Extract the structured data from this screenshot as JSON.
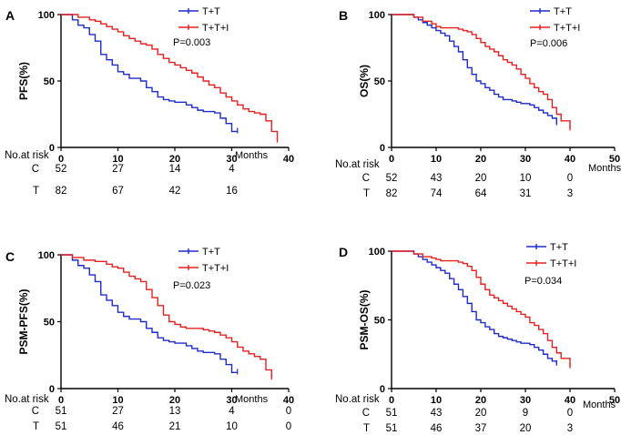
{
  "figure": {
    "common": {
      "risk_header": "No.at risk",
      "months_label": "Months",
      "row_c": "C",
      "row_t": "T"
    }
  },
  "chart_data": [
    {
      "type": "line",
      "panel": "A",
      "ylabel": "PFS(%)",
      "xlabel": "Months",
      "xlim": [
        0,
        40
      ],
      "ylim": [
        0,
        100
      ],
      "x_ticks": [
        "0",
        "10",
        "20",
        "30",
        "40"
      ],
      "y_ticks": [
        "0",
        "50",
        "100"
      ],
      "p_value": "P=0.003",
      "legend_position": "top-right",
      "series": [
        {
          "name": "T+T",
          "color": "#1f2ccc",
          "x": [
            0,
            2,
            3,
            4,
            5,
            6,
            7,
            8,
            9,
            10,
            11,
            12,
            14,
            15,
            16,
            17,
            18,
            19,
            20,
            22,
            23,
            24,
            25,
            27,
            28,
            29,
            30,
            31
          ],
          "y": [
            100,
            96,
            92,
            90,
            85,
            80,
            70,
            66,
            62,
            57,
            55,
            52,
            50,
            45,
            42,
            38,
            36,
            35,
            34,
            32,
            30,
            28,
            27,
            26,
            22,
            18,
            12,
            12
          ]
        },
        {
          "name": "T+T+I",
          "color": "#e8201e",
          "x": [
            0,
            3,
            5,
            6,
            7,
            8,
            9,
            10,
            11,
            12,
            13,
            14,
            15,
            16,
            17,
            18,
            19,
            20,
            21,
            22,
            23,
            24,
            25,
            26,
            27,
            28,
            29,
            30,
            31,
            32,
            33,
            34,
            35,
            36,
            37,
            38
          ],
          "y": [
            100,
            98,
            96,
            95,
            93,
            91,
            89,
            87,
            84,
            82,
            80,
            78,
            77,
            74,
            70,
            67,
            64,
            62,
            60,
            58,
            56,
            53,
            50,
            47,
            45,
            41,
            38,
            35,
            32,
            29,
            27,
            26,
            25,
            20,
            12,
            5
          ]
        }
      ],
      "risk_table": {
        "C": [
          "52",
          "27",
          "14",
          "4",
          ""
        ],
        "T": [
          "82",
          "67",
          "42",
          "16",
          ""
        ]
      }
    },
    {
      "type": "line",
      "panel": "B",
      "ylabel": "OS(%)",
      "xlabel": "Months",
      "xlim": [
        0,
        50
      ],
      "ylim": [
        0,
        100
      ],
      "x_ticks": [
        "0",
        "10",
        "20",
        "30",
        "40",
        "50"
      ],
      "y_ticks": [
        "0",
        "50",
        "100"
      ],
      "p_value": "P=0.006",
      "legend_position": "top-right",
      "series": [
        {
          "name": "T+T",
          "color": "#1f2ccc",
          "x": [
            0,
            5,
            6,
            7,
            8,
            9,
            10,
            11,
            12,
            13,
            14,
            15,
            16,
            17,
            18,
            19,
            20,
            21,
            22,
            23,
            24,
            25,
            26,
            27,
            28,
            29,
            30,
            31,
            32,
            33,
            34,
            35,
            36,
            37
          ],
          "y": [
            100,
            98,
            96,
            94,
            92,
            90,
            88,
            86,
            84,
            80,
            76,
            72,
            66,
            60,
            55,
            50,
            48,
            45,
            43,
            40,
            38,
            36,
            36,
            35,
            34,
            33,
            33,
            32,
            30,
            28,
            26,
            24,
            22,
            18
          ]
        },
        {
          "name": "T+T+I",
          "color": "#e8201e",
          "x": [
            0,
            5,
            7,
            9,
            10,
            11,
            12,
            14,
            15,
            16,
            17,
            18,
            19,
            20,
            21,
            22,
            23,
            24,
            25,
            26,
            27,
            28,
            29,
            30,
            31,
            32,
            33,
            34,
            35,
            36,
            37,
            38,
            40
          ],
          "y": [
            100,
            98,
            95,
            93,
            91,
            90,
            90,
            90,
            89,
            88,
            87,
            85,
            82,
            79,
            76,
            74,
            72,
            69,
            66,
            64,
            62,
            59,
            55,
            52,
            48,
            45,
            42,
            40,
            36,
            30,
            25,
            20,
            14
          ]
        }
      ],
      "risk_table": {
        "C": [
          "52",
          "43",
          "20",
          "10",
          "0",
          ""
        ],
        "T": [
          "82",
          "74",
          "64",
          "31",
          "3",
          ""
        ]
      }
    },
    {
      "type": "line",
      "panel": "C",
      "ylabel": "PSM-PFS(%)",
      "xlabel": "Months",
      "xlim": [
        0,
        40
      ],
      "ylim": [
        0,
        100
      ],
      "x_ticks": [
        "0",
        "10",
        "20",
        "30",
        "40"
      ],
      "y_ticks": [
        "0",
        "50",
        "100"
      ],
      "p_value": "P=0.023",
      "legend_position": "top-right",
      "series": [
        {
          "name": "T+T",
          "color": "#1f2ccc",
          "x": [
            0,
            2,
            3,
            4,
            5,
            6,
            7,
            8,
            9,
            10,
            11,
            12,
            14,
            15,
            16,
            17,
            18,
            19,
            20,
            22,
            23,
            24,
            25,
            27,
            28,
            29,
            30,
            31
          ],
          "y": [
            100,
            96,
            92,
            90,
            85,
            80,
            70,
            66,
            62,
            57,
            54,
            52,
            50,
            45,
            42,
            38,
            36,
            35,
            34,
            32,
            30,
            28,
            27,
            26,
            22,
            18,
            12,
            12
          ]
        },
        {
          "name": "T+T+I",
          "color": "#e8201e",
          "x": [
            0,
            2,
            4,
            6,
            8,
            9,
            10,
            11,
            12,
            13,
            14,
            15,
            16,
            17,
            18,
            19,
            20,
            21,
            22,
            23,
            24,
            25,
            26,
            27,
            28,
            29,
            30,
            31,
            32,
            33,
            34,
            35,
            36,
            37
          ],
          "y": [
            100,
            98,
            96,
            95,
            93,
            91,
            90,
            87,
            84,
            82,
            80,
            74,
            68,
            62,
            55,
            50,
            48,
            46,
            45,
            45,
            45,
            44,
            43,
            42,
            40,
            38,
            35,
            31,
            28,
            26,
            24,
            22,
            14,
            8
          ]
        }
      ],
      "risk_table": {
        "C": [
          "51",
          "27",
          "13",
          "4",
          "0"
        ],
        "T": [
          "51",
          "46",
          "21",
          "10",
          "0"
        ]
      }
    },
    {
      "type": "line",
      "panel": "D",
      "ylabel": "PSM-OS(%)",
      "xlabel": "Months",
      "xlim": [
        0,
        50
      ],
      "ylim": [
        0,
        100
      ],
      "x_ticks": [
        "0",
        "10",
        "20",
        "30",
        "40",
        "50"
      ],
      "y_ticks": [
        "0",
        "50",
        "100"
      ],
      "p_value": "P=0.034",
      "legend_position": "top-right",
      "series": [
        {
          "name": "T+T",
          "color": "#1f2ccc",
          "x": [
            0,
            5,
            6,
            7,
            8,
            9,
            10,
            11,
            12,
            13,
            14,
            15,
            16,
            17,
            18,
            19,
            20,
            21,
            22,
            23,
            24,
            25,
            26,
            27,
            28,
            29,
            30,
            31,
            32,
            33,
            34,
            35,
            36,
            37
          ],
          "y": [
            100,
            98,
            96,
            94,
            92,
            90,
            88,
            86,
            84,
            80,
            76,
            72,
            67,
            62,
            56,
            50,
            48,
            45,
            43,
            40,
            38,
            37,
            36,
            35,
            34,
            33,
            33,
            32,
            30,
            28,
            25,
            22,
            20,
            18
          ]
        },
        {
          "name": "T+T+I",
          "color": "#e8201e",
          "x": [
            0,
            5,
            7,
            9,
            10,
            11,
            12,
            14,
            15,
            16,
            17,
            18,
            19,
            20,
            21,
            22,
            23,
            24,
            25,
            26,
            27,
            28,
            29,
            30,
            31,
            32,
            33,
            34,
            35,
            36,
            37,
            38,
            40
          ],
          "y": [
            100,
            98,
            96,
            95,
            94,
            93,
            93,
            93,
            92,
            91,
            89,
            86,
            81,
            76,
            72,
            68,
            66,
            64,
            62,
            60,
            58,
            56,
            54,
            52,
            48,
            46,
            43,
            40,
            35,
            30,
            26,
            22,
            16
          ]
        }
      ],
      "risk_table": {
        "C": [
          "51",
          "43",
          "20",
          "9",
          "0",
          ""
        ],
        "T": [
          "51",
          "46",
          "37",
          "20",
          "3",
          ""
        ]
      }
    }
  ]
}
